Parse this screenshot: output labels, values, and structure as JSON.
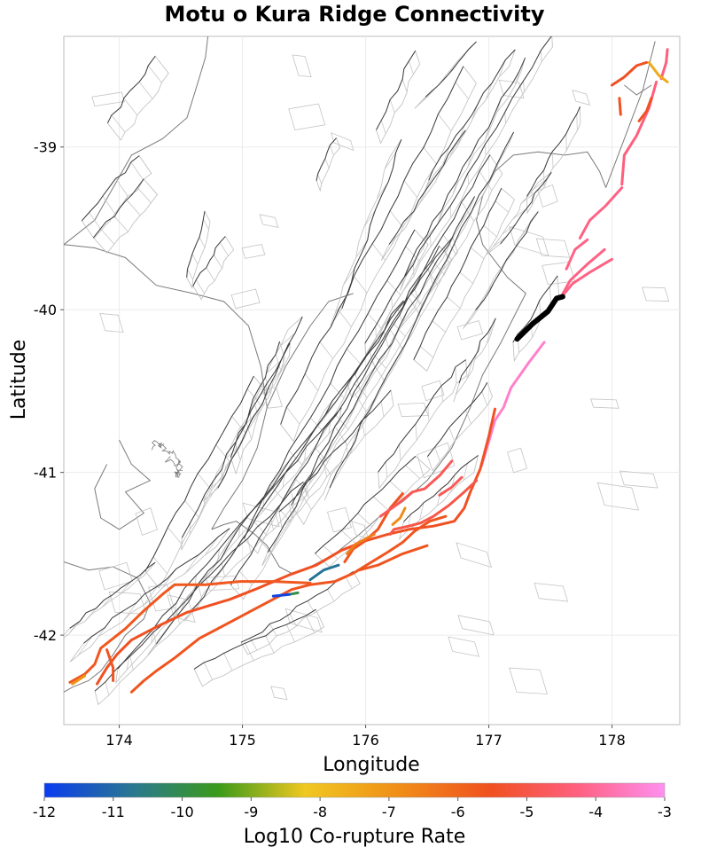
{
  "title": "Motu o Kura Ridge Connectivity",
  "xlabel": "Longitude",
  "ylabel": "Latitude",
  "x_ticks": [
    "174",
    "175",
    "176",
    "177",
    "178"
  ],
  "y_ticks": [
    "-39",
    "-40",
    "-41",
    "-42"
  ],
  "colorbar": {
    "label": "Log10 Co-rupture Rate",
    "ticks": [
      "-12",
      "-11",
      "-10",
      "-9",
      "-8",
      "-7",
      "-6",
      "-5",
      "-4",
      "-3"
    ],
    "colors": [
      "#0a3cf0",
      "#2a7a8a",
      "#3a9a1a",
      "#f0c820",
      "#f08a18",
      "#f05020",
      "#ff6080",
      "#ff90f0"
    ]
  },
  "chart_data": {
    "type": "map",
    "title": "Motu o Kura Ridge Connectivity",
    "xlabel": "Longitude",
    "ylabel": "Latitude",
    "xlim": [
      173.55,
      178.55
    ],
    "ylim": [
      -42.55,
      -38.32
    ],
    "target_fault": "Motu o Kura Ridge",
    "target_color": "#000000",
    "target_trace": [
      [
        177.23,
        -40.18
      ],
      [
        177.35,
        -40.09
      ],
      [
        177.48,
        -40.01
      ],
      [
        177.55,
        -39.93
      ],
      [
        177.6,
        -39.92
      ]
    ],
    "colored_faults": [
      {
        "log10_rate": -4.2,
        "coords": [
          [
            177.58,
            -39.93
          ],
          [
            177.68,
            -39.84
          ],
          [
            177.82,
            -39.77
          ],
          [
            178.0,
            -39.69
          ]
        ]
      },
      {
        "log10_rate": -4.2,
        "coords": [
          [
            177.58,
            -39.93
          ],
          [
            177.66,
            -39.82
          ],
          [
            177.8,
            -39.72
          ],
          [
            177.94,
            -39.63
          ]
        ]
      },
      {
        "log10_rate": -4.2,
        "coords": [
          [
            177.74,
            -39.56
          ],
          [
            177.82,
            -39.45
          ],
          [
            177.95,
            -39.36
          ],
          [
            178.08,
            -39.25
          ]
        ]
      },
      {
        "log10_rate": -4.2,
        "coords": [
          [
            177.63,
            -39.75
          ],
          [
            177.7,
            -39.63
          ],
          [
            177.8,
            -39.57
          ]
        ]
      },
      {
        "log10_rate": -4.3,
        "coords": [
          [
            178.08,
            -39.23
          ],
          [
            178.1,
            -39.05
          ],
          [
            178.2,
            -38.93
          ],
          [
            178.3,
            -38.76
          ],
          [
            178.36,
            -38.6
          ]
        ]
      },
      {
        "log10_rate": -4.3,
        "coords": [
          [
            178.4,
            -38.58
          ],
          [
            178.44,
            -38.48
          ],
          [
            178.45,
            -38.4
          ]
        ]
      },
      {
        "log10_rate": -7.5,
        "coords": [
          [
            178.3,
            -38.48
          ],
          [
            178.38,
            -38.56
          ],
          [
            178.45,
            -38.6
          ]
        ]
      },
      {
        "log10_rate": -5.5,
        "coords": [
          [
            178.0,
            -38.62
          ],
          [
            178.1,
            -38.57
          ],
          [
            178.2,
            -38.5
          ],
          [
            178.28,
            -38.48
          ]
        ]
      },
      {
        "log10_rate": -5.5,
        "coords": [
          [
            178.06,
            -38.7
          ],
          [
            178.07,
            -38.8
          ]
        ]
      },
      {
        "log10_rate": -5.5,
        "coords": [
          [
            178.22,
            -38.84
          ],
          [
            178.28,
            -38.78
          ],
          [
            178.32,
            -38.7
          ]
        ]
      },
      {
        "log10_rate": -3.4,
        "coords": [
          [
            177.45,
            -40.2
          ],
          [
            177.32,
            -40.33
          ],
          [
            177.18,
            -40.48
          ],
          [
            177.12,
            -40.6
          ],
          [
            177.05,
            -40.68
          ],
          [
            177.02,
            -40.76
          ],
          [
            176.98,
            -40.86
          ],
          [
            176.94,
            -40.96
          ]
        ]
      },
      {
        "log10_rate": -5.5,
        "coords": [
          [
            177.05,
            -40.61
          ],
          [
            177.0,
            -40.78
          ],
          [
            176.93,
            -40.98
          ],
          [
            176.85,
            -41.12
          ],
          [
            176.8,
            -41.22
          ],
          [
            176.72,
            -41.3
          ],
          [
            176.55,
            -41.33
          ],
          [
            176.35,
            -41.35
          ],
          [
            176.18,
            -41.38
          ],
          [
            176.0,
            -41.42
          ],
          [
            175.8,
            -41.48
          ],
          [
            175.6,
            -41.57
          ],
          [
            175.38,
            -41.63
          ],
          [
            175.1,
            -41.72
          ],
          [
            174.9,
            -41.78
          ],
          [
            174.55,
            -41.86
          ],
          [
            174.3,
            -41.95
          ],
          [
            174.1,
            -42.03
          ],
          [
            173.98,
            -42.12
          ],
          [
            173.9,
            -42.2
          ],
          [
            173.82,
            -42.3
          ]
        ]
      },
      {
        "log10_rate": -5.0,
        "coords": [
          [
            176.9,
            -41.05
          ],
          [
            176.8,
            -41.12
          ],
          [
            176.68,
            -41.2
          ],
          [
            176.55,
            -41.27
          ],
          [
            176.45,
            -41.31
          ],
          [
            176.35,
            -41.33
          ],
          [
            176.23,
            -41.35
          ],
          [
            176.2,
            -41.38
          ]
        ]
      },
      {
        "log10_rate": -5.6,
        "coords": [
          [
            176.65,
            -41.27
          ],
          [
            176.52,
            -41.3
          ],
          [
            176.4,
            -41.36
          ],
          [
            176.3,
            -41.43
          ],
          [
            176.18,
            -41.49
          ],
          [
            176.05,
            -41.55
          ],
          [
            175.9,
            -41.62
          ],
          [
            175.75,
            -41.67
          ],
          [
            175.55,
            -41.69
          ],
          [
            175.4,
            -41.72
          ],
          [
            175.25,
            -41.78
          ],
          [
            175.1,
            -41.84
          ],
          [
            174.95,
            -41.9
          ],
          [
            174.8,
            -41.96
          ],
          [
            174.65,
            -42.02
          ],
          [
            174.55,
            -42.08
          ],
          [
            174.45,
            -42.14
          ],
          [
            174.3,
            -42.22
          ],
          [
            174.2,
            -42.28
          ],
          [
            174.1,
            -42.35
          ]
        ]
      },
      {
        "log10_rate": -5.7,
        "coords": [
          [
            175.55,
            -41.68
          ],
          [
            175.25,
            -41.67
          ],
          [
            174.98,
            -41.67
          ],
          [
            174.7,
            -41.69
          ],
          [
            174.45,
            -41.69
          ],
          [
            174.35,
            -41.75
          ],
          [
            174.2,
            -41.85
          ],
          [
            174.05,
            -41.96
          ],
          [
            173.95,
            -42.02
          ],
          [
            173.85,
            -42.08
          ],
          [
            173.8,
            -42.18
          ],
          [
            173.72,
            -42.24
          ],
          [
            173.6,
            -42.29
          ]
        ]
      },
      {
        "log10_rate": -5.6,
        "coords": [
          [
            176.5,
            -41.45
          ],
          [
            176.3,
            -41.5
          ],
          [
            176.1,
            -41.57
          ],
          [
            175.95,
            -41.6
          ]
        ]
      },
      {
        "log10_rate": -5.6,
        "coords": [
          [
            176.3,
            -41.13
          ],
          [
            176.2,
            -41.22
          ],
          [
            176.1,
            -41.35
          ],
          [
            175.98,
            -41.43
          ],
          [
            175.9,
            -41.47
          ],
          [
            175.83,
            -41.55
          ]
        ]
      },
      {
        "log10_rate": -6.5,
        "coords": [
          [
            176.07,
            -41.38
          ],
          [
            175.92,
            -41.44
          ],
          [
            175.85,
            -41.5
          ]
        ]
      },
      {
        "log10_rate": -6.8,
        "coords": [
          [
            176.32,
            -41.22
          ],
          [
            176.28,
            -41.28
          ],
          [
            176.22,
            -41.32
          ]
        ]
      },
      {
        "log10_rate": -4.8,
        "coords": [
          [
            176.7,
            -40.93
          ],
          [
            176.6,
            -41.02
          ],
          [
            176.48,
            -41.1
          ],
          [
            176.38,
            -41.12
          ],
          [
            176.25,
            -41.2
          ],
          [
            176.12,
            -41.27
          ]
        ]
      },
      {
        "log10_rate": -4.8,
        "coords": [
          [
            176.78,
            -41.03
          ],
          [
            176.7,
            -41.09
          ],
          [
            176.6,
            -41.14
          ]
        ]
      },
      {
        "log10_rate": -10.8,
        "coords": [
          [
            175.78,
            -41.57
          ],
          [
            175.66,
            -41.6
          ],
          [
            175.55,
            -41.66
          ]
        ]
      },
      {
        "log10_rate": -10.0,
        "coords": [
          [
            175.45,
            -41.74
          ],
          [
            175.38,
            -41.75
          ]
        ]
      },
      {
        "log10_rate": -11.8,
        "coords": [
          [
            175.38,
            -41.75
          ],
          [
            175.25,
            -41.76
          ]
        ]
      },
      {
        "log10_rate": -5.6,
        "coords": [
          [
            173.9,
            -42.09
          ],
          [
            173.95,
            -42.2
          ],
          [
            173.95,
            -42.28
          ]
        ]
      },
      {
        "log10_rate": -7.0,
        "coords": [
          [
            173.72,
            -42.25
          ],
          [
            173.62,
            -42.3
          ]
        ]
      }
    ]
  }
}
